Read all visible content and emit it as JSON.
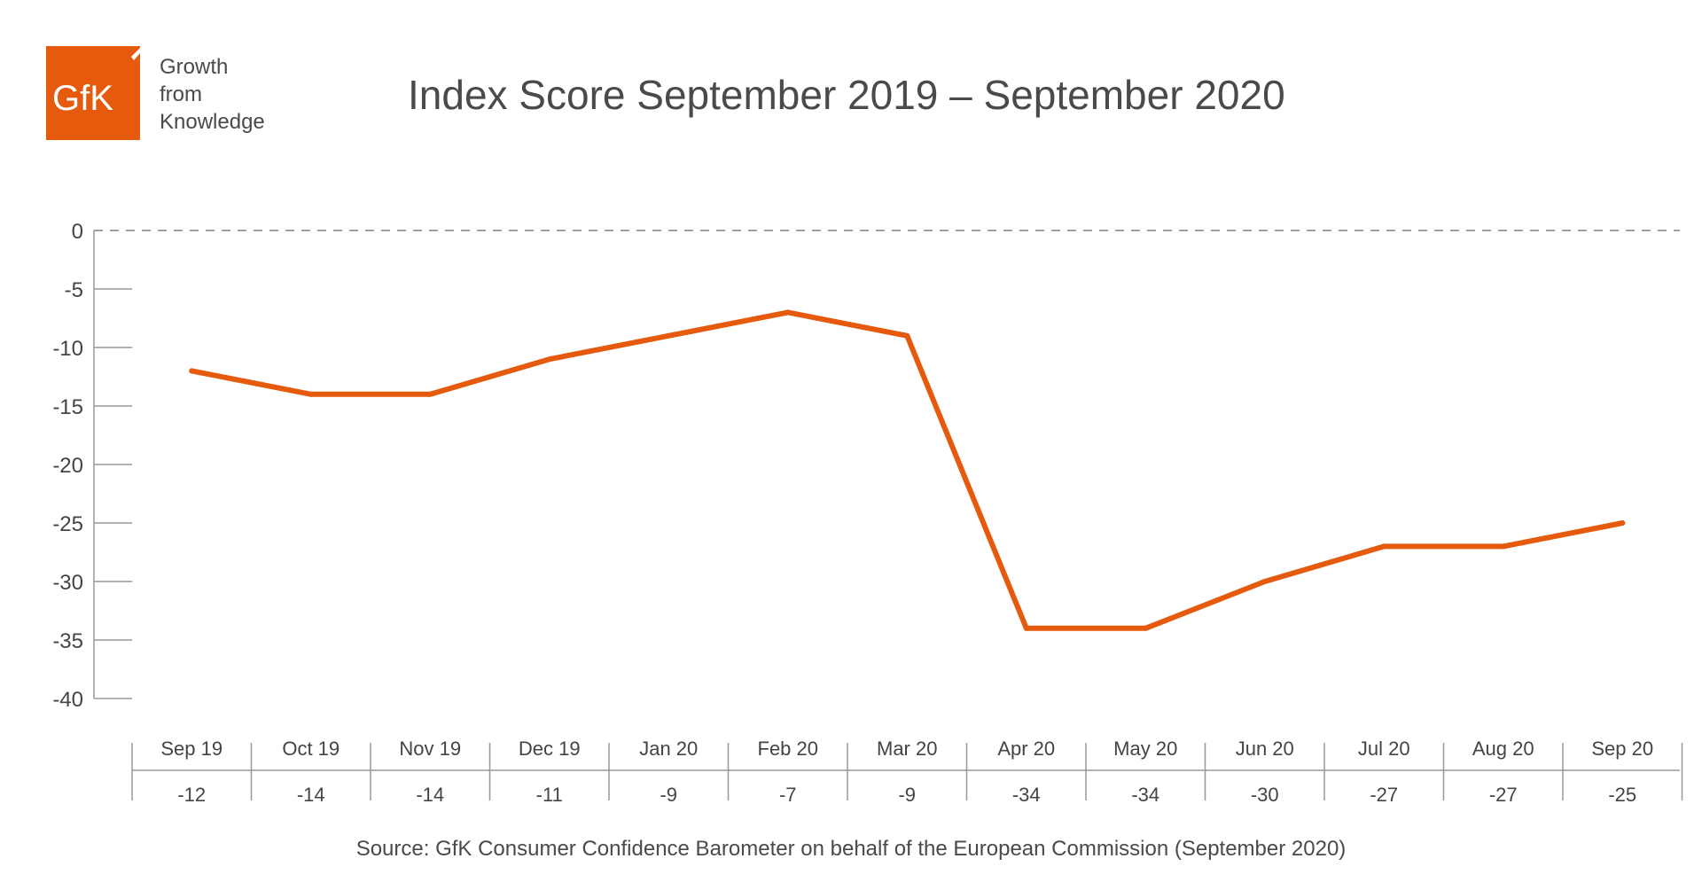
{
  "brand": {
    "logo_text": "GfK",
    "tagline": [
      "Growth",
      "from",
      "Knowledge"
    ],
    "color": "#e55a0c"
  },
  "title": "Index Score September 2019 – September 2020",
  "source": "Source: GfK Consumer Confidence Barometer on behalf of the European Commission (September 2020)",
  "chart_data": {
    "type": "line",
    "title": "Index Score September 2019 – September 2020",
    "categories": [
      "Sep 19",
      "Oct 19",
      "Nov 19",
      "Dec 19",
      "Jan 20",
      "Feb 20",
      "Mar 20",
      "Apr 20",
      "May 20",
      "Jun 20",
      "Jul 20",
      "Aug 20",
      "Sep 20"
    ],
    "series": [
      {
        "values": [
          -12,
          -14,
          -14,
          -11,
          -9,
          -7,
          -9,
          -34,
          -34,
          -30,
          -27,
          -27,
          -25
        ],
        "color": "#e55a0c"
      }
    ],
    "value_labels": [
      "-12",
      "-14",
      "-14",
      "-11",
      "-9",
      "-7",
      "-9",
      "-34",
      "-34",
      "-30",
      "-27",
      "-27",
      "-25"
    ],
    "yticks": [
      "0",
      "-5",
      "-10",
      "-15",
      "-20",
      "-25",
      "-30",
      "-35",
      "-40"
    ],
    "ylim": [
      -40,
      0
    ],
    "zero_line": "dashed",
    "grid": false,
    "data_table_below": true,
    "axis_color": "#999999"
  }
}
